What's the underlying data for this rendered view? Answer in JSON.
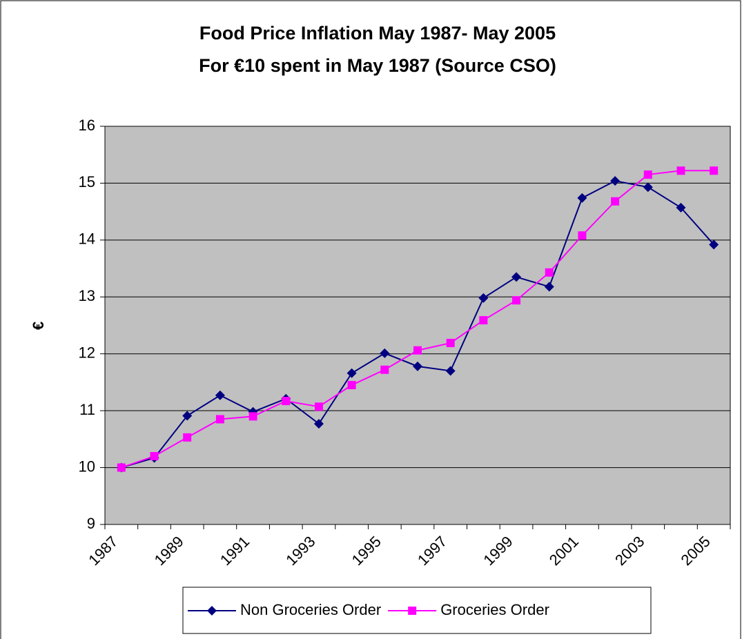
{
  "chart_data": {
    "type": "line",
    "title": "Food Price Inflation May 1987- May 2005",
    "subtitle": "For €10 spent in May 1987 (Source CSO)",
    "y_label": "€",
    "categories": [
      "1987",
      null,
      "1989",
      null,
      "1991",
      null,
      "1993",
      null,
      "1995",
      null,
      "1997",
      null,
      "1999",
      null,
      "2001",
      null,
      "2003",
      null,
      "2005"
    ],
    "series": [
      {
        "name": "Non Groceries Order",
        "color": "#000080",
        "marker": "diamond",
        "values": [
          10.0,
          10.17,
          10.91,
          11.27,
          10.98,
          11.21,
          10.77,
          11.66,
          12.01,
          11.78,
          11.7,
          12.98,
          13.35,
          13.18,
          14.74,
          15.04,
          14.93,
          14.57,
          13.92
        ]
      },
      {
        "name": "Groceries Order",
        "color": "#ff00ff",
        "marker": "square",
        "values": [
          10.0,
          10.2,
          10.53,
          10.85,
          10.9,
          11.17,
          11.07,
          11.45,
          11.72,
          12.06,
          12.19,
          12.59,
          12.94,
          13.43,
          14.08,
          14.68,
          15.15,
          15.22,
          15.22
        ]
      }
    ],
    "ylim": [
      9,
      16
    ],
    "yticks": [
      9,
      10,
      11,
      12,
      13,
      14,
      15,
      16
    ],
    "grid": true,
    "plot_background": "#c0c0c0",
    "legend": "bottom"
  }
}
